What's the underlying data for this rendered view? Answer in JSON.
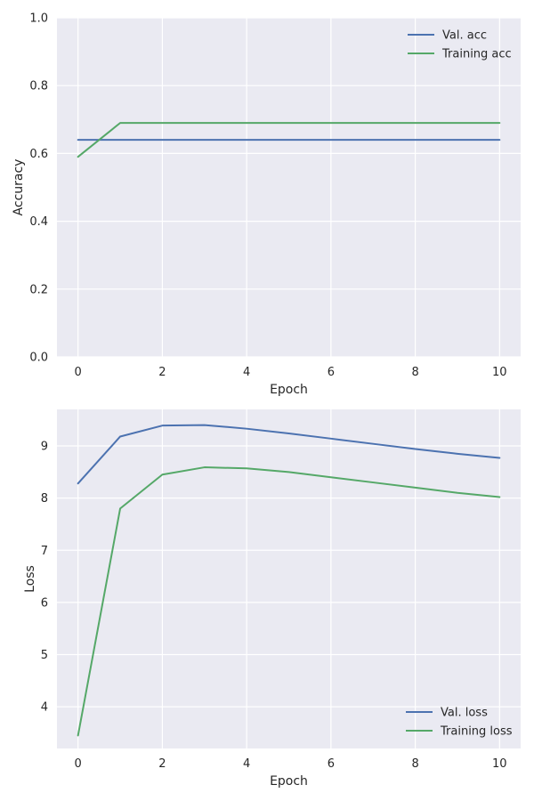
{
  "chart_data": [
    {
      "type": "line",
      "xlabel": "Epoch",
      "ylabel": "Accuracy",
      "xlim": [
        -0.5,
        10.5
      ],
      "ylim": [
        0.0,
        1.0
      ],
      "xticks": [
        0,
        2,
        4,
        6,
        8,
        10
      ],
      "yticks": [
        0.0,
        0.2,
        0.4,
        0.6,
        0.8,
        1.0
      ],
      "ytick_labels": [
        "0.0",
        "0.2",
        "0.4",
        "0.6",
        "0.8",
        "1.0"
      ],
      "grid": true,
      "legend_position": "top-right",
      "x": [
        0,
        1,
        2,
        3,
        4,
        5,
        6,
        7,
        8,
        9,
        10
      ],
      "series": [
        {
          "name": "Val. acc",
          "color": "#4c72b0",
          "values": [
            0.64,
            0.64,
            0.64,
            0.64,
            0.64,
            0.64,
            0.64,
            0.64,
            0.64,
            0.64,
            0.64
          ]
        },
        {
          "name": "Training acc",
          "color": "#55a868",
          "values": [
            0.59,
            0.69,
            0.69,
            0.69,
            0.69,
            0.69,
            0.69,
            0.69,
            0.69,
            0.69,
            0.69
          ]
        }
      ]
    },
    {
      "type": "line",
      "xlabel": "Epoch",
      "ylabel": "Loss",
      "xlim": [
        -0.5,
        10.5
      ],
      "ylim": [
        3.2,
        9.7
      ],
      "xticks": [
        0,
        2,
        4,
        6,
        8,
        10
      ],
      "yticks": [
        4,
        5,
        6,
        7,
        8,
        9
      ],
      "ytick_labels": [
        "4",
        "5",
        "6",
        "7",
        "8",
        "9"
      ],
      "grid": true,
      "legend_position": "bottom-right",
      "x": [
        0,
        1,
        2,
        3,
        4,
        5,
        6,
        7,
        8,
        9,
        10
      ],
      "series": [
        {
          "name": "Val. loss",
          "color": "#4c72b0",
          "values": [
            8.28,
            9.18,
            9.39,
            9.4,
            9.33,
            9.24,
            9.14,
            9.04,
            8.94,
            8.85,
            8.77
          ]
        },
        {
          "name": "Training loss",
          "color": "#55a868",
          "values": [
            3.45,
            7.8,
            8.45,
            8.59,
            8.57,
            8.5,
            8.4,
            8.3,
            8.2,
            8.1,
            8.02
          ]
        }
      ]
    }
  ]
}
